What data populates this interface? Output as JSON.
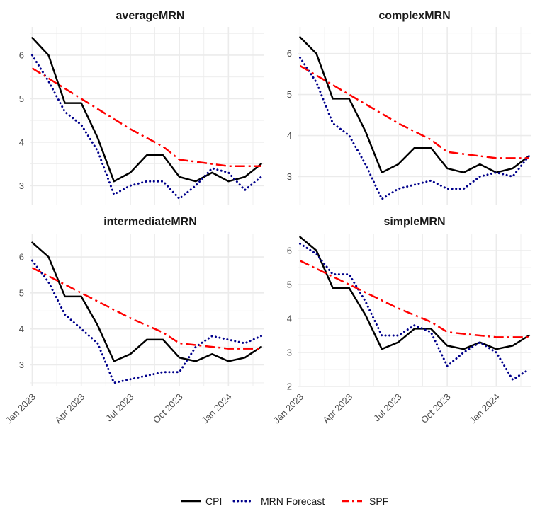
{
  "chart_data": [
    {
      "type": "line",
      "title": "averageMRN",
      "x": [
        "2023-01",
        "2023-02",
        "2023-03",
        "2023-04",
        "2023-05",
        "2023-06",
        "2023-07",
        "2023-08",
        "2023-09",
        "2023-10",
        "2023-11",
        "2023-12",
        "2024-01",
        "2024-02",
        "2024-03"
      ],
      "xticks": [
        {
          "value": "2023-01",
          "label": "Jan 2023"
        },
        {
          "value": "2023-04",
          "label": "Apr 2023"
        },
        {
          "value": "2023-07",
          "label": "Jul 2023"
        },
        {
          "value": "2023-10",
          "label": "Oct 2023"
        },
        {
          "value": "2024-01",
          "label": "Jan 2024"
        }
      ],
      "yticks": [
        3,
        4,
        5,
        6
      ],
      "ylim": [
        2.55,
        6.65
      ],
      "series": [
        {
          "name": "CPI",
          "values": [
            6.4,
            6.0,
            4.9,
            4.9,
            4.1,
            3.1,
            3.3,
            3.7,
            3.7,
            3.2,
            3.1,
            3.3,
            3.1,
            3.2,
            3.5
          ]
        },
        {
          "name": "MRN Forecast",
          "values": [
            6.0,
            5.4,
            4.7,
            4.4,
            3.8,
            2.8,
            3.0,
            3.1,
            3.1,
            2.7,
            3.0,
            3.4,
            3.3,
            2.9,
            3.2
          ]
        },
        {
          "name": "SPF",
          "x": [
            "2023-01",
            "2023-04",
            "2023-07",
            "2023-09",
            "2023-10",
            "2024-01",
            "2024-03"
          ],
          "values": [
            5.7,
            5.0,
            4.3,
            3.9,
            3.6,
            3.45,
            3.45
          ]
        }
      ]
    },
    {
      "type": "line",
      "title": "complexMRN",
      "x": [
        "2023-01",
        "2023-02",
        "2023-03",
        "2023-04",
        "2023-05",
        "2023-06",
        "2023-07",
        "2023-08",
        "2023-09",
        "2023-10",
        "2023-11",
        "2023-12",
        "2024-01",
        "2024-02",
        "2024-03"
      ],
      "xticks": [
        {
          "value": "2023-01",
          "label": "Jan 2023"
        },
        {
          "value": "2023-04",
          "label": "Apr 2023"
        },
        {
          "value": "2023-07",
          "label": "Jul 2023"
        },
        {
          "value": "2023-10",
          "label": "Oct 2023"
        },
        {
          "value": "2024-01",
          "label": "Jan 2024"
        }
      ],
      "yticks": [
        3,
        4,
        5,
        6
      ],
      "ylim": [
        2.3,
        6.65
      ],
      "series": [
        {
          "name": "CPI",
          "values": [
            6.4,
            6.0,
            4.9,
            4.9,
            4.1,
            3.1,
            3.3,
            3.7,
            3.7,
            3.2,
            3.1,
            3.3,
            3.1,
            3.2,
            3.5
          ]
        },
        {
          "name": "MRN Forecast",
          "values": [
            5.9,
            5.3,
            4.3,
            4.0,
            3.3,
            2.45,
            2.7,
            2.8,
            2.9,
            2.7,
            2.7,
            3.0,
            3.1,
            3.0,
            3.5
          ]
        },
        {
          "name": "SPF",
          "x": [
            "2023-01",
            "2023-04",
            "2023-07",
            "2023-09",
            "2023-10",
            "2024-01",
            "2024-03"
          ],
          "values": [
            5.7,
            5.0,
            4.3,
            3.9,
            3.6,
            3.45,
            3.45
          ]
        }
      ]
    },
    {
      "type": "line",
      "title": "intermediateMRN",
      "x": [
        "2023-01",
        "2023-02",
        "2023-03",
        "2023-04",
        "2023-05",
        "2023-06",
        "2023-07",
        "2023-08",
        "2023-09",
        "2023-10",
        "2023-11",
        "2023-12",
        "2024-01",
        "2024-02",
        "2024-03"
      ],
      "xticks": [
        {
          "value": "2023-01",
          "label": "Jan 2023"
        },
        {
          "value": "2023-04",
          "label": "Apr 2023"
        },
        {
          "value": "2023-07",
          "label": "Jul 2023"
        },
        {
          "value": "2023-10",
          "label": "Oct 2023"
        },
        {
          "value": "2024-01",
          "label": "Jan 2024"
        }
      ],
      "yticks": [
        3,
        4,
        5,
        6
      ],
      "ylim": [
        2.4,
        6.65
      ],
      "series": [
        {
          "name": "CPI",
          "values": [
            6.4,
            6.0,
            4.9,
            4.9,
            4.1,
            3.1,
            3.3,
            3.7,
            3.7,
            3.2,
            3.1,
            3.3,
            3.1,
            3.2,
            3.5
          ]
        },
        {
          "name": "MRN Forecast",
          "values": [
            5.9,
            5.3,
            4.4,
            4.0,
            3.6,
            2.5,
            2.6,
            2.7,
            2.8,
            2.8,
            3.5,
            3.8,
            3.7,
            3.6,
            3.8
          ]
        },
        {
          "name": "SPF",
          "x": [
            "2023-01",
            "2023-04",
            "2023-07",
            "2023-09",
            "2023-10",
            "2024-01",
            "2024-03"
          ],
          "values": [
            5.7,
            5.0,
            4.3,
            3.9,
            3.6,
            3.45,
            3.45
          ]
        }
      ]
    },
    {
      "type": "line",
      "title": "simpleMRN",
      "x": [
        "2023-01",
        "2023-02",
        "2023-03",
        "2023-04",
        "2023-05",
        "2023-06",
        "2023-07",
        "2023-08",
        "2023-09",
        "2023-10",
        "2023-11",
        "2023-12",
        "2024-01",
        "2024-02",
        "2024-03"
      ],
      "xticks": [
        {
          "value": "2023-01",
          "label": "Jan 2023"
        },
        {
          "value": "2023-04",
          "label": "Apr 2023"
        },
        {
          "value": "2023-07",
          "label": "Jul 2023"
        },
        {
          "value": "2023-10",
          "label": "Oct 2023"
        },
        {
          "value": "2024-01",
          "label": "Jan 2024"
        }
      ],
      "yticks": [
        2,
        3,
        4,
        5,
        6
      ],
      "ylim": [
        2.0,
        6.5
      ],
      "series": [
        {
          "name": "CPI",
          "values": [
            6.4,
            6.0,
            4.9,
            4.9,
            4.1,
            3.1,
            3.3,
            3.7,
            3.7,
            3.2,
            3.1,
            3.3,
            3.1,
            3.2,
            3.5
          ]
        },
        {
          "name": "MRN Forecast",
          "values": [
            6.2,
            5.9,
            5.3,
            5.3,
            4.5,
            3.5,
            3.5,
            3.8,
            3.6,
            2.6,
            3.0,
            3.3,
            3.0,
            2.2,
            2.5
          ]
        },
        {
          "name": "SPF",
          "x": [
            "2023-01",
            "2023-04",
            "2023-07",
            "2023-09",
            "2023-10",
            "2024-01",
            "2024-03"
          ],
          "values": [
            5.7,
            5.0,
            4.3,
            3.9,
            3.6,
            3.45,
            3.45
          ]
        }
      ]
    }
  ],
  "legend": {
    "position": "bottom",
    "items": [
      {
        "name": "CPI",
        "color": "#000000",
        "style": "solid"
      },
      {
        "name": "MRN Forecast",
        "color": "#00008b",
        "style": "dotted"
      },
      {
        "name": "SPF",
        "color": "#ff0000",
        "style": "dashdot"
      }
    ]
  },
  "grid": true,
  "colors": {
    "CPI": "#000000",
    "MRN Forecast": "#00008b",
    "SPF": "#ff0000",
    "grid": "#ebebeb",
    "background": "#ffffff"
  }
}
